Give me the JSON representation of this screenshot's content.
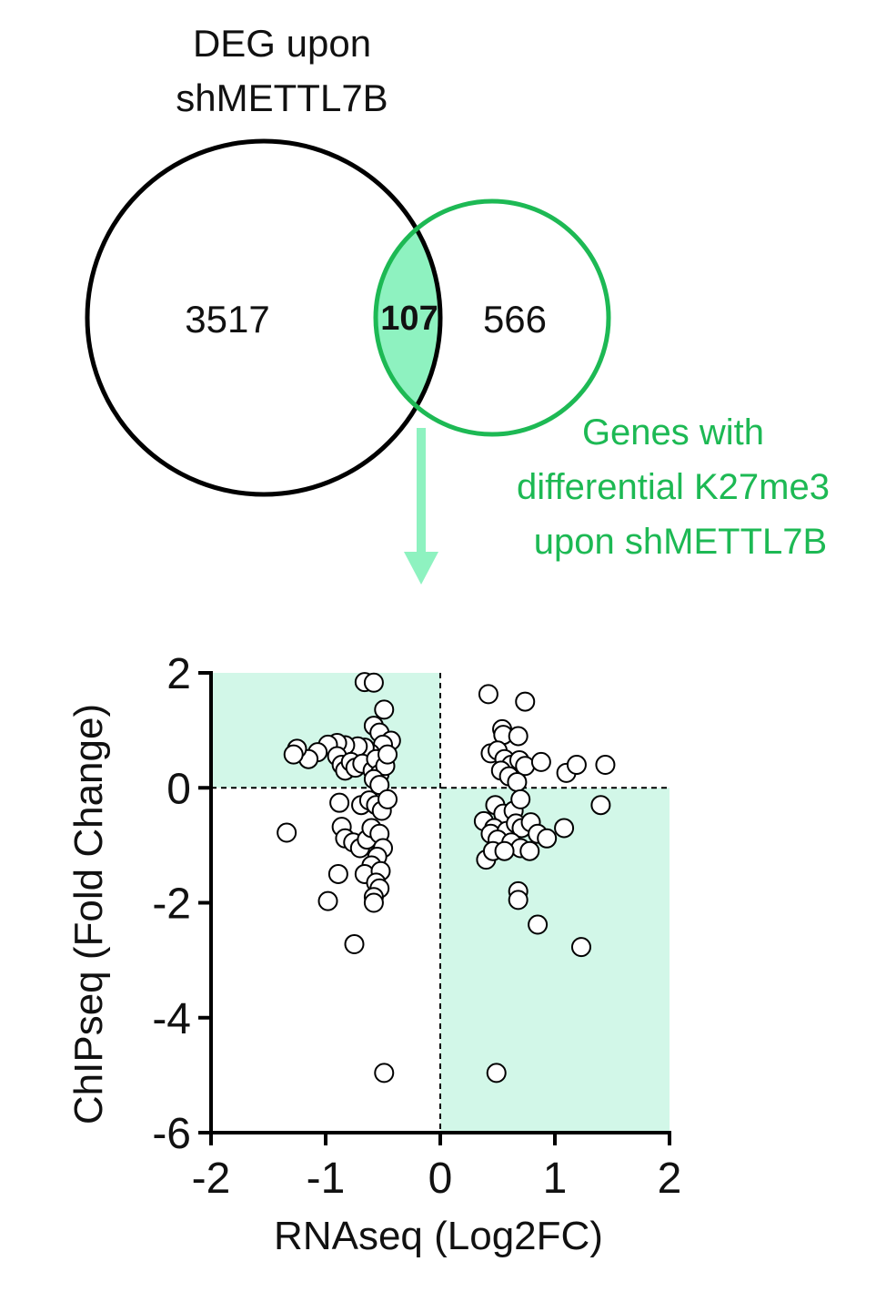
{
  "venn": {
    "left_title_line1": "DEG upon",
    "left_title_line2": "shMETTL7B",
    "left_count": "3517",
    "overlap_count": "107",
    "right_count": "566",
    "right_title_line1": "Genes with",
    "right_title_line2": "differential K27me3",
    "right_title_line3": "upon shMETTL7B",
    "left_color": "#000000",
    "right_color": "#1db954",
    "overlap_fill": "#8ef2c0",
    "arrow_color": "#8ef2c0"
  },
  "chart_data": {
    "type": "scatter",
    "title": "",
    "xlabel": "RNAseq (Log2FC)",
    "ylabel": "ChIPseq (Fold Change)",
    "xlim": [
      -2,
      2
    ],
    "ylim": [
      -6,
      2
    ],
    "xticks": [
      -2,
      -1,
      0,
      1,
      2
    ],
    "yticks": [
      2,
      0,
      -2,
      -4,
      -6
    ],
    "grid": false,
    "reference_lines": {
      "x": 0,
      "y": 0,
      "style": "dashed"
    },
    "highlight_quadrants": [
      {
        "x": [
          -2,
          0
        ],
        "y": [
          0,
          2
        ],
        "color": "#d2f7e8"
      },
      {
        "x": [
          0,
          2
        ],
        "y": [
          -6,
          0
        ],
        "color": "#d2f7e8"
      }
    ],
    "marker": {
      "fill": "#ffffff",
      "stroke": "#000000"
    },
    "points": [
      [
        -0.66,
        1.84
      ],
      [
        -0.58,
        1.83
      ],
      [
        -0.49,
        1.36
      ],
      [
        -0.58,
        1.08
      ],
      [
        -0.53,
        0.96
      ],
      [
        -0.43,
        0.82
      ],
      [
        -0.5,
        0.75
      ],
      [
        -0.61,
        0.6
      ],
      [
        -0.66,
        0.7
      ],
      [
        -0.72,
        0.72
      ],
      [
        -0.83,
        0.74
      ],
      [
        -0.9,
        0.78
      ],
      [
        -0.98,
        0.75
      ],
      [
        -1.07,
        0.62
      ],
      [
        -1.15,
        0.5
      ],
      [
        -1.25,
        0.68
      ],
      [
        -1.28,
        0.58
      ],
      [
        -0.9,
        0.55
      ],
      [
        -0.86,
        0.4
      ],
      [
        -0.83,
        0.3
      ],
      [
        -0.78,
        0.45
      ],
      [
        -0.74,
        0.35
      ],
      [
        -0.68,
        0.42
      ],
      [
        -0.59,
        0.3
      ],
      [
        -0.56,
        0.5
      ],
      [
        -0.53,
        0.24
      ],
      [
        -0.48,
        0.38
      ],
      [
        -0.46,
        0.58
      ],
      [
        -0.58,
        0.15
      ],
      [
        -0.53,
        0.05
      ],
      [
        -0.88,
        -0.26
      ],
      [
        -0.69,
        -0.3
      ],
      [
        -0.62,
        -0.22
      ],
      [
        -0.56,
        -0.3
      ],
      [
        -0.51,
        -0.4
      ],
      [
        -0.46,
        -0.2
      ],
      [
        -1.34,
        -0.78
      ],
      [
        -0.86,
        -0.68
      ],
      [
        -0.83,
        -0.88
      ],
      [
        -0.76,
        -0.95
      ],
      [
        -0.7,
        -1.05
      ],
      [
        -0.64,
        -0.9
      ],
      [
        -0.6,
        -0.7
      ],
      [
        -0.53,
        -0.8
      ],
      [
        -0.5,
        -1.05
      ],
      [
        -0.55,
        -1.2
      ],
      [
        -0.6,
        -1.35
      ],
      [
        -0.66,
        -1.5
      ],
      [
        -0.52,
        -1.45
      ],
      [
        -0.56,
        -1.65
      ],
      [
        -0.53,
        -1.75
      ],
      [
        -0.58,
        -1.9
      ],
      [
        -0.58,
        -2.0
      ],
      [
        -0.89,
        -1.5
      ],
      [
        -0.98,
        -1.97
      ],
      [
        -0.75,
        -2.72
      ],
      [
        -0.49,
        -4.96
      ],
      [
        0.42,
        1.63
      ],
      [
        0.74,
        1.5
      ],
      [
        0.54,
        1.02
      ],
      [
        0.55,
        0.92
      ],
      [
        0.68,
        0.9
      ],
      [
        0.44,
        0.6
      ],
      [
        0.5,
        0.65
      ],
      [
        0.56,
        0.5
      ],
      [
        0.62,
        0.4
      ],
      [
        0.69,
        0.48
      ],
      [
        0.74,
        0.38
      ],
      [
        0.88,
        0.45
      ],
      [
        0.53,
        0.3
      ],
      [
        0.6,
        0.2
      ],
      [
        0.67,
        0.1
      ],
      [
        1.1,
        0.26
      ],
      [
        1.19,
        0.4
      ],
      [
        1.44,
        0.4
      ],
      [
        0.48,
        -0.3
      ],
      [
        0.55,
        -0.45
      ],
      [
        0.64,
        -0.4
      ],
      [
        0.7,
        -0.2
      ],
      [
        0.38,
        -0.58
      ],
      [
        0.47,
        -0.7
      ],
      [
        0.44,
        -0.8
      ],
      [
        0.58,
        -0.75
      ],
      [
        0.66,
        -0.62
      ],
      [
        0.71,
        -0.7
      ],
      [
        0.79,
        -0.6
      ],
      [
        0.85,
        -0.8
      ],
      [
        0.93,
        -0.88
      ],
      [
        1.08,
        -0.7
      ],
      [
        1.4,
        -0.3
      ],
      [
        0.5,
        -0.9
      ],
      [
        0.62,
        -0.95
      ],
      [
        0.7,
        -1.05
      ],
      [
        0.78,
        -1.1
      ],
      [
        0.4,
        -1.25
      ],
      [
        0.46,
        -1.1
      ],
      [
        0.56,
        -1.1
      ],
      [
        0.68,
        -1.8
      ],
      [
        0.68,
        -1.95
      ],
      [
        0.85,
        -2.38
      ],
      [
        1.23,
        -2.77
      ],
      [
        0.49,
        -4.96
      ]
    ]
  }
}
